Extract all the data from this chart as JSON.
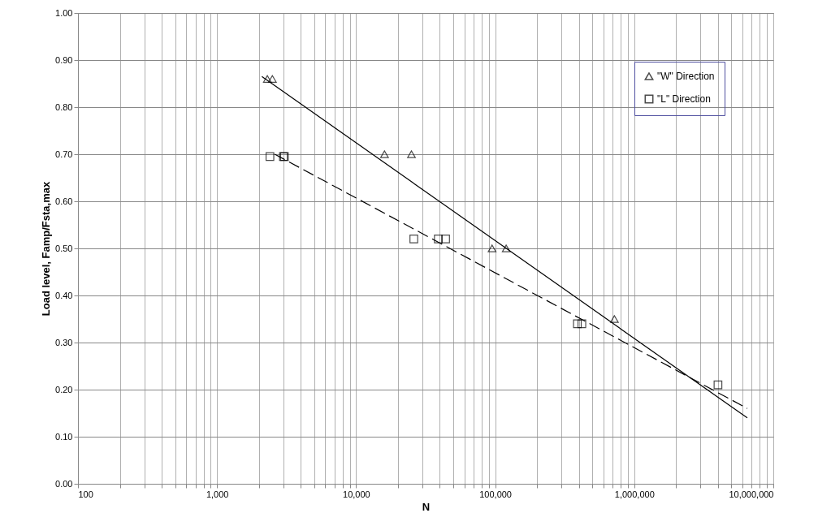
{
  "chart_data": {
    "type": "scatter",
    "xlabel": "N",
    "ylabel": "Load level, Famp/Fsta,max",
    "log": "x",
    "grid": true,
    "legend": "top right",
    "xlim": [
      100,
      10000000
    ],
    "xticks": [
      {
        "value": 100,
        "label": "100"
      },
      {
        "value": 200,
        "label": null
      },
      {
        "value": 300,
        "label": null
      },
      {
        "value": 400,
        "label": null
      },
      {
        "value": 500,
        "label": null
      },
      {
        "value": 600,
        "label": null
      },
      {
        "value": 700,
        "label": null
      },
      {
        "value": 800,
        "label": null
      },
      {
        "value": 900,
        "label": null
      },
      {
        "value": 1000,
        "label": "1,000"
      },
      {
        "value": 2000,
        "label": null
      },
      {
        "value": 3000,
        "label": null
      },
      {
        "value": 4000,
        "label": null
      },
      {
        "value": 5000,
        "label": null
      },
      {
        "value": 6000,
        "label": null
      },
      {
        "value": 7000,
        "label": null
      },
      {
        "value": 8000,
        "label": null
      },
      {
        "value": 9000,
        "label": null
      },
      {
        "value": 10000,
        "label": "10,000"
      },
      {
        "value": 20000,
        "label": null
      },
      {
        "value": 30000,
        "label": null
      },
      {
        "value": 40000,
        "label": null
      },
      {
        "value": 50000,
        "label": null
      },
      {
        "value": 60000,
        "label": null
      },
      {
        "value": 70000,
        "label": null
      },
      {
        "value": 80000,
        "label": null
      },
      {
        "value": 90000,
        "label": null
      },
      {
        "value": 100000,
        "label": "100,000"
      },
      {
        "value": 200000,
        "label": null
      },
      {
        "value": 300000,
        "label": null
      },
      {
        "value": 400000,
        "label": null
      },
      {
        "value": 500000,
        "label": null
      },
      {
        "value": 600000,
        "label": null
      },
      {
        "value": 700000,
        "label": null
      },
      {
        "value": 800000,
        "label": null
      },
      {
        "value": 900000,
        "label": null
      },
      {
        "value": 1000000,
        "label": "1,000,000"
      },
      {
        "value": 2000000,
        "label": null
      },
      {
        "value": 3000000,
        "label": null
      },
      {
        "value": 4000000,
        "label": null
      },
      {
        "value": 5000000,
        "label": null
      },
      {
        "value": 6000000,
        "label": null
      },
      {
        "value": 7000000,
        "label": null
      },
      {
        "value": 8000000,
        "label": null
      },
      {
        "value": 9000000,
        "label": null
      },
      {
        "value": 10000000,
        "label": "10,000,000"
      }
    ],
    "ylim": [
      0,
      1
    ],
    "yticks": [
      {
        "value": 0,
        "label": "0.00"
      },
      {
        "value": 0.1,
        "label": "0.10"
      },
      {
        "value": 0.2,
        "label": "0.20"
      },
      {
        "value": 0.3,
        "label": "0.30"
      },
      {
        "value": 0.4,
        "label": "0.40"
      },
      {
        "value": 0.5,
        "label": "0.50"
      },
      {
        "value": 0.6,
        "label": "0.60"
      },
      {
        "value": 0.7,
        "label": "0.70"
      },
      {
        "value": 0.8,
        "label": "0.80"
      },
      {
        "value": 0.9,
        "label": "0.90"
      },
      {
        "value": 1,
        "label": "1.00"
      }
    ],
    "series": [
      {
        "name": "\"W\" Direction",
        "type": "scatter",
        "marker": "triangle",
        "color": "#000000",
        "x": [
          2300,
          2500,
          16000,
          25000,
          95000,
          120000,
          720000
        ],
        "values": [
          0.86,
          0.86,
          0.7,
          0.7,
          0.5,
          0.5,
          0.35
        ]
      },
      {
        "name": "\"L\" Direction",
        "type": "scatter",
        "marker": "square",
        "color": "#000000",
        "x": [
          2400,
          3000,
          3050,
          26000,
          39000,
          44000,
          390000,
          420000,
          4000000
        ],
        "values": [
          0.695,
          0.695,
          0.695,
          0.52,
          0.52,
          0.52,
          0.34,
          0.34,
          0.21
        ]
      },
      {
        "type": "line",
        "line_style": "solid",
        "color": "#000000",
        "x": [
          2100,
          6500000
        ],
        "values": [
          0.865,
          0.14
        ]
      },
      {
        "type": "line",
        "line_style": "dashed",
        "color": "#000000",
        "x": [
          2600,
          6500000
        ],
        "values": [
          0.7,
          0.16
        ]
      }
    ]
  }
}
